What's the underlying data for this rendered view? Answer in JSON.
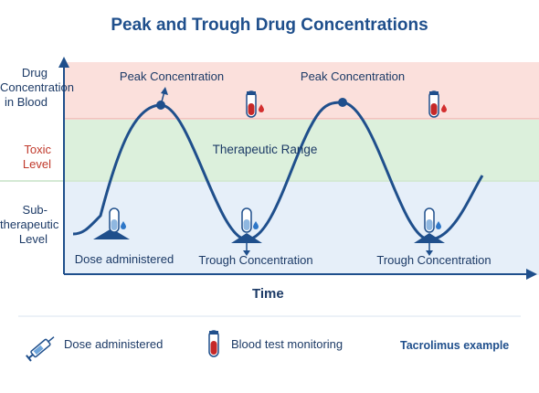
{
  "title": "Peak and Trough Drug Concentrations",
  "y_axis": {
    "label_lines": [
      "Drug",
      "Concentration",
      "in Blood"
    ],
    "toxic": "Toxic Level",
    "sub_lines": [
      "Sub-",
      "therapeutic",
      "Level"
    ]
  },
  "x_axis": {
    "label": "Time"
  },
  "zones": {
    "therapeutic": "Therapeutic Range"
  },
  "annotations": {
    "peak1": "Peak Concentration",
    "peak2": "Peak Concentration",
    "dose": "Dose administered",
    "trough1": "Trough Concentration",
    "trough2": "Trough Concentration"
  },
  "legend": {
    "dose": "Dose administered",
    "blood": "Blood test monitoring",
    "example": "Tacrolimus example"
  },
  "colors": {
    "title": "#1f4f8c",
    "toxic_zone": "#fbe0dc",
    "therapeutic_zone": "#dcf0dc",
    "sub_zone": "#e6eff9",
    "curve": "#1f4f8c",
    "toxic_text": "#c0392b"
  },
  "icons": [
    "syringe-icon",
    "blood-tube-icon",
    "test-tube-icon",
    "water-drop-icon"
  ]
}
